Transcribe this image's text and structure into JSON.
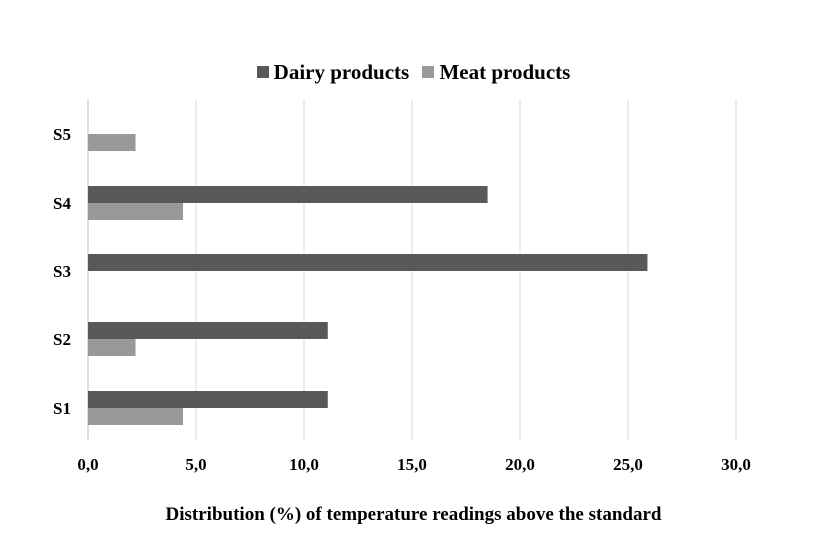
{
  "chart_data": {
    "type": "bar",
    "orientation": "horizontal",
    "categories": [
      "S1",
      "S2",
      "S3",
      "S4",
      "S5"
    ],
    "series": [
      {
        "name": "Dairy products",
        "color": "#595959",
        "values": [
          11.1,
          11.1,
          25.9,
          18.5,
          0
        ]
      },
      {
        "name": "Meat products",
        "color": "#999999",
        "values": [
          4.4,
          2.2,
          0,
          4.4,
          2.2
        ]
      }
    ],
    "xlim": [
      0,
      30
    ],
    "xticks": [
      0,
      5,
      10,
      15,
      20,
      25,
      30
    ],
    "xtick_labels": [
      "0,0",
      "5,0",
      "10,0",
      "15,0",
      "20,0",
      "25,0",
      "30,0"
    ],
    "xlabel": "Distribution (%) of temperature readings above the standard",
    "ylabel": "",
    "grid": "vertical",
    "legend_position": "top-center"
  }
}
